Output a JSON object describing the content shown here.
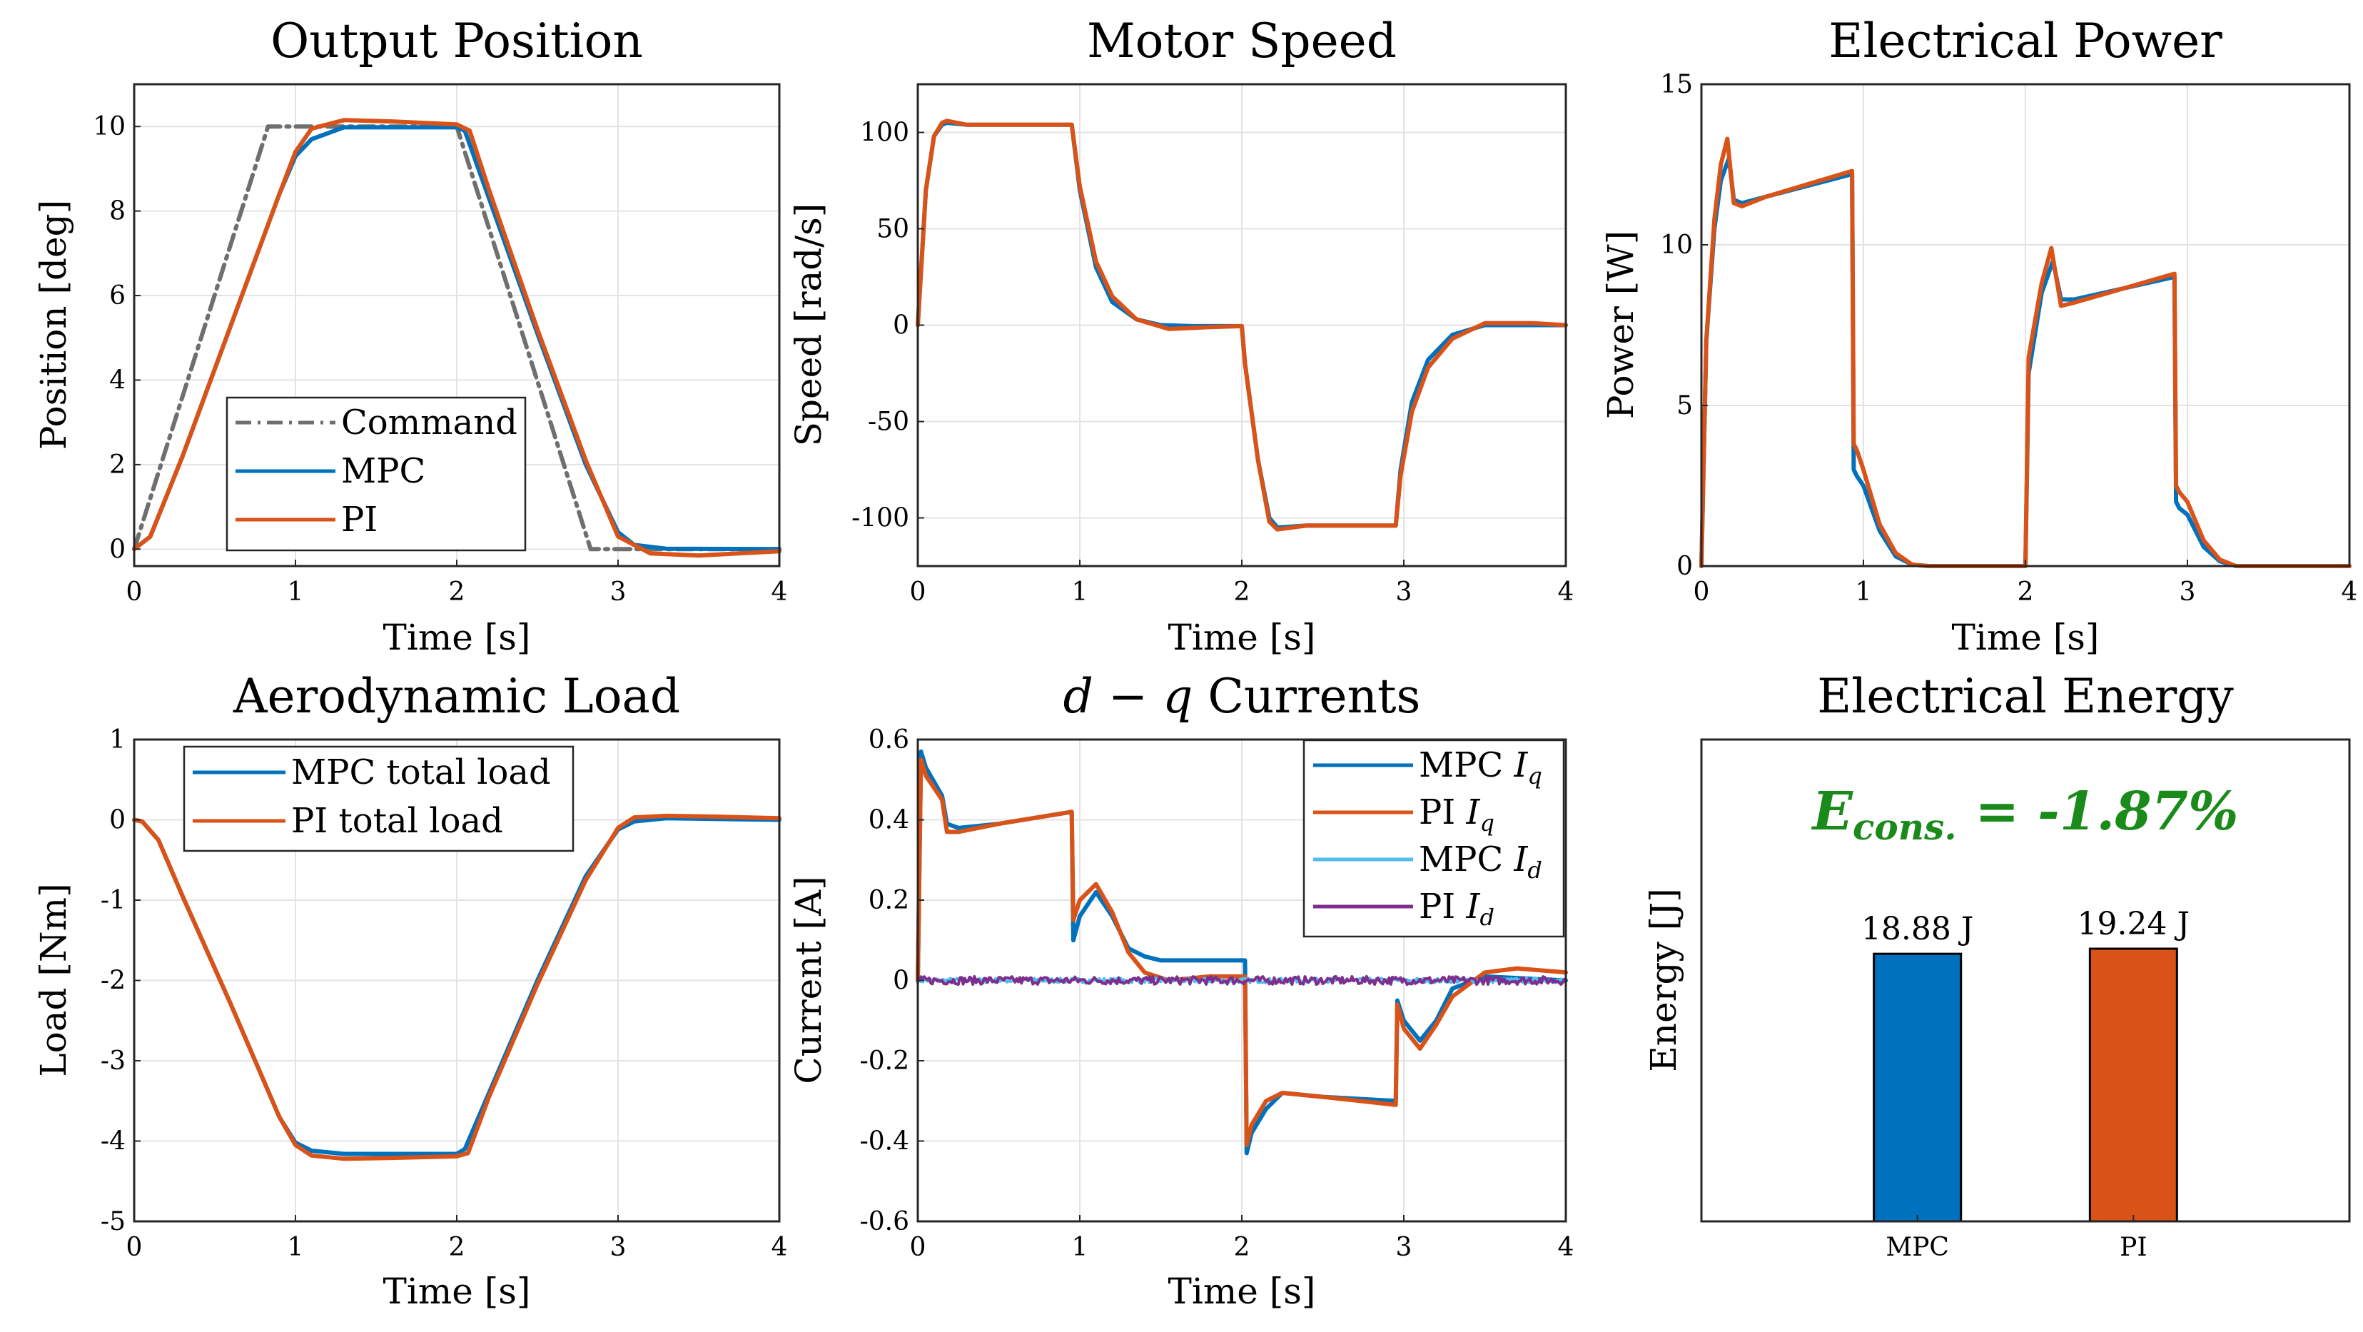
{
  "figure": {
    "layout": "2x3 subplot grid"
  },
  "colors": {
    "mpc": "#0072BD",
    "pi": "#D95319",
    "command": "#6f6f6f",
    "mpc_id": "#4DBEEE",
    "pi_id": "#7E2F8E",
    "grid": "#e3e3e3",
    "annotation": "#1a8a1a"
  },
  "chart_data": [
    {
      "id": "position",
      "type": "line",
      "title": "Output Position",
      "xlabel": "Time [s]",
      "ylabel": "Position [deg]",
      "xlim": [
        0,
        4
      ],
      "ylim": [
        -0.4,
        11
      ],
      "xticks": [
        0,
        1,
        2,
        3,
        4
      ],
      "yticks": [
        0,
        2,
        4,
        6,
        8,
        10
      ],
      "xtick_labels": [
        "0",
        "1",
        "2",
        "3",
        "4"
      ],
      "ytick_labels": [
        "0",
        "2",
        "4",
        "6",
        "8",
        "10"
      ],
      "legend": {
        "placement": "center-bottom",
        "entries": [
          "Command",
          "MPC",
          "PI"
        ]
      },
      "series": [
        {
          "name": "Command",
          "color": "#6f6f6f",
          "dash": "dashdot",
          "x": [
            0,
            0.83,
            2.0,
            2.83,
            4.0
          ],
          "y": [
            0,
            10,
            10,
            0,
            0
          ]
        },
        {
          "name": "MPC",
          "color": "#0072BD",
          "x": [
            0,
            0.1,
            0.3,
            0.6,
            0.9,
            1.0,
            1.1,
            1.3,
            2.0,
            2.05,
            2.2,
            2.5,
            2.8,
            3.0,
            3.1,
            3.3,
            4.0
          ],
          "y": [
            0,
            0.3,
            2.2,
            5.3,
            8.4,
            9.3,
            9.7,
            9.98,
            9.98,
            9.9,
            8.3,
            5.1,
            2.0,
            0.4,
            0.1,
            0.01,
            0.0
          ]
        },
        {
          "name": "PI",
          "color": "#D95319",
          "x": [
            0,
            0.1,
            0.3,
            0.6,
            0.9,
            1.0,
            1.1,
            1.3,
            1.6,
            2.0,
            2.08,
            2.2,
            2.5,
            2.8,
            3.0,
            3.2,
            3.5,
            4.0
          ],
          "y": [
            0,
            0.3,
            2.2,
            5.3,
            8.4,
            9.4,
            9.95,
            10.15,
            10.12,
            10.05,
            9.9,
            8.5,
            5.2,
            2.1,
            0.3,
            -0.1,
            -0.15,
            -0.05
          ]
        }
      ]
    },
    {
      "id": "speed",
      "type": "line",
      "title": "Motor Speed",
      "xlabel": "Time [s]",
      "ylabel": "Speed [rad/s]",
      "xlim": [
        0,
        4
      ],
      "ylim": [
        -125,
        125
      ],
      "xticks": [
        0,
        1,
        2,
        3,
        4
      ],
      "yticks": [
        -100,
        -50,
        0,
        50,
        100
      ],
      "xtick_labels": [
        "0",
        "1",
        "2",
        "3",
        "4"
      ],
      "ytick_labels": [
        "-100",
        "-50",
        "0",
        "50",
        "100"
      ],
      "series": [
        {
          "name": "MPC",
          "color": "#0072BD",
          "x": [
            0,
            0.05,
            0.1,
            0.15,
            0.18,
            0.3,
            0.95,
            1.0,
            1.1,
            1.2,
            1.35,
            1.5,
            1.7,
            2.0,
            2.02,
            2.1,
            2.17,
            2.22,
            2.4,
            2.95,
            2.98,
            3.05,
            3.15,
            3.3,
            3.5,
            4.0
          ],
          "y": [
            0,
            70,
            98,
            104,
            105,
            104,
            104,
            70,
            30,
            12,
            3,
            0,
            -0.5,
            -0.5,
            -20,
            -70,
            -100,
            -105,
            -104,
            -104,
            -75,
            -40,
            -18,
            -5,
            0,
            0
          ]
        },
        {
          "name": "PI",
          "color": "#D95319",
          "x": [
            0,
            0.05,
            0.1,
            0.15,
            0.18,
            0.3,
            0.95,
            1.0,
            1.1,
            1.2,
            1.35,
            1.55,
            1.8,
            2.0,
            2.02,
            2.1,
            2.17,
            2.22,
            2.4,
            2.95,
            2.98,
            3.05,
            3.15,
            3.3,
            3.5,
            3.8,
            4.0
          ],
          "y": [
            0,
            70,
            98,
            105,
            106,
            104,
            104,
            72,
            33,
            15,
            3,
            -2,
            -1,
            -0.5,
            -20,
            -70,
            -102,
            -106,
            -104,
            -104,
            -78,
            -45,
            -22,
            -7,
            1,
            1,
            0
          ]
        }
      ]
    },
    {
      "id": "power",
      "type": "line",
      "title": "Electrical Power",
      "xlabel": "Time [s]",
      "ylabel": "Power [W]",
      "xlim": [
        0,
        4
      ],
      "ylim": [
        0,
        15
      ],
      "xticks": [
        0,
        1,
        2,
        3,
        4
      ],
      "yticks": [
        0,
        5,
        10,
        15
      ],
      "xtick_labels": [
        "0",
        "1",
        "2",
        "3",
        "4"
      ],
      "ytick_labels": [
        "0",
        "5",
        "10",
        "15"
      ],
      "series": [
        {
          "name": "MPC",
          "color": "#0072BD",
          "x": [
            0,
            0.03,
            0.08,
            0.12,
            0.17,
            0.2,
            0.25,
            0.4,
            0.93,
            0.94,
            0.96,
            1.0,
            1.1,
            1.2,
            1.3,
            1.4,
            2.0,
            2.02,
            2.1,
            2.17,
            2.22,
            2.3,
            2.92,
            2.93,
            2.95,
            3.0,
            3.1,
            3.2,
            3.3,
            4.0
          ],
          "y": [
            0,
            7,
            10.5,
            12.0,
            12.7,
            11.4,
            11.3,
            11.5,
            12.2,
            3.0,
            2.8,
            2.5,
            1.1,
            0.3,
            0.05,
            0,
            0,
            6,
            8.5,
            9.5,
            8.3,
            8.3,
            9.0,
            2.0,
            1.8,
            1.6,
            0.6,
            0.15,
            0,
            0
          ]
        },
        {
          "name": "PI",
          "color": "#D95319",
          "x": [
            0,
            0.03,
            0.08,
            0.12,
            0.16,
            0.2,
            0.25,
            0.4,
            0.93,
            0.94,
            0.96,
            1.0,
            1.1,
            1.2,
            1.3,
            1.4,
            2.0,
            2.02,
            2.1,
            2.16,
            2.22,
            2.3,
            2.92,
            2.93,
            2.95,
            3.0,
            3.1,
            3.2,
            3.3,
            4.0
          ],
          "y": [
            0,
            7,
            10.8,
            12.5,
            13.3,
            11.3,
            11.2,
            11.5,
            12.3,
            3.8,
            3.6,
            3.0,
            1.3,
            0.4,
            0.05,
            0,
            0,
            6.5,
            8.8,
            9.9,
            8.1,
            8.2,
            9.1,
            2.5,
            2.3,
            2.0,
            0.8,
            0.2,
            0,
            0
          ]
        }
      ]
    },
    {
      "id": "load",
      "type": "line",
      "title": "Aerodynamic Load",
      "xlabel": "Time [s]",
      "ylabel": "Load [Nm]",
      "xlim": [
        0,
        4
      ],
      "ylim": [
        -5,
        1
      ],
      "xticks": [
        0,
        1,
        2,
        3,
        4
      ],
      "yticks": [
        -5,
        -4,
        -3,
        -2,
        -1,
        0,
        1
      ],
      "xtick_labels": [
        "0",
        "1",
        "2",
        "3",
        "4"
      ],
      "ytick_labels": [
        "-5",
        "-4",
        "-3",
        "-2",
        "-1",
        "0",
        "1"
      ],
      "legend": {
        "placement": "top-left",
        "entries": [
          "MPC total load",
          "PI total load"
        ]
      },
      "series": [
        {
          "name": "MPC total load",
          "color": "#0072BD",
          "x": [
            0,
            0.05,
            0.15,
            0.3,
            0.6,
            0.9,
            1.0,
            1.1,
            1.3,
            2.0,
            2.05,
            2.2,
            2.5,
            2.8,
            3.0,
            3.1,
            3.3,
            4.0
          ],
          "y": [
            0,
            -0.02,
            -0.25,
            -0.95,
            -2.3,
            -3.7,
            -4.02,
            -4.12,
            -4.16,
            -4.16,
            -4.1,
            -3.4,
            -2.0,
            -0.7,
            -0.12,
            -0.02,
            0.02,
            0.0
          ]
        },
        {
          "name": "PI total load",
          "color": "#D95319",
          "x": [
            0,
            0.05,
            0.15,
            0.3,
            0.6,
            0.9,
            1.0,
            1.1,
            1.3,
            1.6,
            2.0,
            2.07,
            2.2,
            2.5,
            2.8,
            3.0,
            3.1,
            3.3,
            3.6,
            4.0
          ],
          "y": [
            0,
            -0.02,
            -0.25,
            -0.95,
            -2.3,
            -3.7,
            -4.05,
            -4.18,
            -4.22,
            -4.21,
            -4.19,
            -4.15,
            -3.45,
            -2.05,
            -0.75,
            -0.1,
            0.03,
            0.05,
            0.04,
            0.02
          ]
        }
      ]
    },
    {
      "id": "currents",
      "type": "line",
      "title": "d − q Currents",
      "title_parts": {
        "italic": "d − q",
        "plain": " Currents"
      },
      "xlabel": "Time [s]",
      "ylabel": "Current [A]",
      "xlim": [
        0,
        4
      ],
      "ylim": [
        -0.6,
        0.6
      ],
      "xticks": [
        0,
        1,
        2,
        3,
        4
      ],
      "yticks": [
        -0.6,
        -0.4,
        -0.2,
        0,
        0.2,
        0.4,
        0.6
      ],
      "xtick_labels": [
        "0",
        "1",
        "2",
        "3",
        "4"
      ],
      "ytick_labels": [
        "-0.6",
        "-0.4",
        "-0.2",
        "0",
        "0.2",
        "0.4",
        "0.6"
      ],
      "legend": {
        "placement": "top-right",
        "entries": [
          "MPC I_q",
          "PI I_q",
          "MPC I_d",
          "PI I_d"
        ]
      },
      "series": [
        {
          "name": "MPC I_q",
          "color": "#0072BD",
          "x": [
            0,
            0.02,
            0.05,
            0.15,
            0.18,
            0.25,
            0.5,
            0.95,
            0.96,
            1.0,
            1.1,
            1.2,
            1.3,
            1.4,
            1.5,
            2.02,
            2.03,
            2.06,
            2.15,
            2.25,
            2.5,
            2.95,
            2.96,
            3.0,
            3.1,
            3.2,
            3.3,
            3.5,
            4.0
          ],
          "y": [
            0,
            0.57,
            0.53,
            0.46,
            0.39,
            0.38,
            0.39,
            0.42,
            0.1,
            0.16,
            0.22,
            0.16,
            0.08,
            0.06,
            0.05,
            0.05,
            -0.43,
            -0.38,
            -0.32,
            -0.28,
            -0.29,
            -0.3,
            -0.05,
            -0.1,
            -0.15,
            -0.1,
            -0.02,
            0.01,
            0.0
          ]
        },
        {
          "name": "PI I_q",
          "color": "#D95319",
          "x": [
            0,
            0.02,
            0.05,
            0.15,
            0.18,
            0.25,
            0.5,
            0.95,
            0.96,
            1.0,
            1.1,
            1.2,
            1.3,
            1.4,
            1.55,
            1.8,
            2.02,
            2.03,
            2.06,
            2.15,
            2.25,
            2.5,
            2.95,
            2.96,
            3.0,
            3.1,
            3.2,
            3.3,
            3.5,
            3.7,
            4.0
          ],
          "y": [
            0,
            0.55,
            0.51,
            0.45,
            0.37,
            0.37,
            0.39,
            0.42,
            0.15,
            0.2,
            0.24,
            0.17,
            0.07,
            0.02,
            0.0,
            0.01,
            0.01,
            -0.41,
            -0.36,
            -0.3,
            -0.28,
            -0.29,
            -0.31,
            -0.06,
            -0.12,
            -0.17,
            -0.11,
            -0.04,
            0.02,
            0.03,
            0.02
          ]
        },
        {
          "name": "MPC I_d",
          "color": "#4DBEEE",
          "x": [
            0,
            4
          ],
          "y": [
            0,
            0
          ],
          "noise": 0.006
        },
        {
          "name": "PI I_d",
          "color": "#7E2F8E",
          "x": [
            0,
            4
          ],
          "y": [
            0,
            0
          ],
          "noise": 0.01
        }
      ]
    },
    {
      "id": "energy",
      "type": "bar",
      "title": "Electrical Energy",
      "ylabel": "Energy [J]",
      "categories": [
        "MPC",
        "PI"
      ],
      "values": [
        18.88,
        19.24
      ],
      "value_labels": [
        "18.88 J",
        "19.24 J"
      ],
      "bar_colors": [
        "#0072BD",
        "#D95319"
      ],
      "ylim": [
        0,
        34
      ],
      "annotation": {
        "symbol": "E",
        "subscript": "cons.",
        "text": " = -1.87%"
      }
    }
  ]
}
